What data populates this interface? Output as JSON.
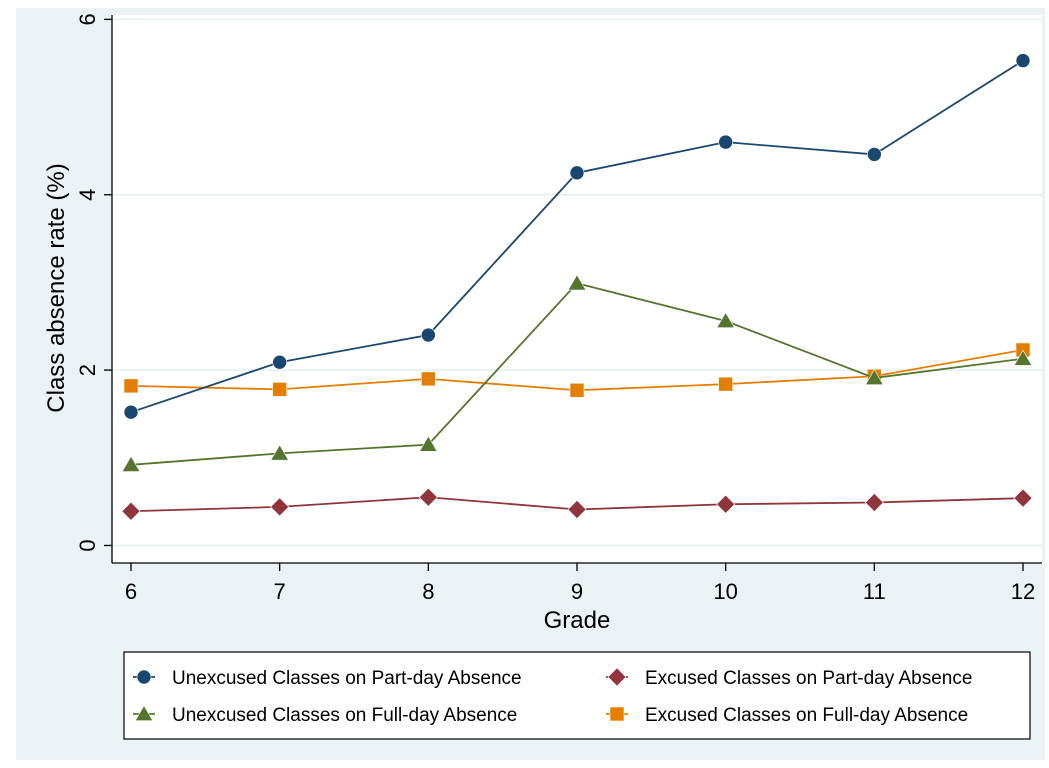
{
  "chart_data": {
    "type": "line",
    "title": "",
    "xlabel": "Grade",
    "ylabel": "Class absence rate (%)",
    "x": [
      6,
      7,
      8,
      9,
      10,
      11,
      12
    ],
    "xticks": [
      "6",
      "7",
      "8",
      "9",
      "10",
      "11",
      "12"
    ],
    "yticks": [
      "0",
      "2",
      "4",
      "6"
    ],
    "ytick_values": [
      0,
      2,
      4,
      6
    ],
    "xlim": [
      6,
      12
    ],
    "ylim": [
      -0.2,
      6.05
    ],
    "grid": "horizontal",
    "legend_position": "bottom",
    "colors": {
      "background": "#eaf2f3",
      "plot_background": "#ffffff",
      "grid": "#e6eef0"
    },
    "series": [
      {
        "name": "Unexcused Classes on Part-day Absence",
        "marker": "circle",
        "color": "#1a476f",
        "values": [
          1.52,
          2.09,
          2.4,
          4.25,
          4.6,
          4.46,
          5.53
        ]
      },
      {
        "name": "Excused Classes on Part-day Absence",
        "marker": "diamond",
        "color": "#90353b",
        "values": [
          0.39,
          0.44,
          0.55,
          0.41,
          0.47,
          0.49,
          0.54
        ]
      },
      {
        "name": "Unexcused Classes on Full-day Absence",
        "marker": "triangle",
        "color": "#55752f",
        "values": [
          0.92,
          1.05,
          1.15,
          2.99,
          2.56,
          1.91,
          2.13
        ]
      },
      {
        "name": "Excused Classes on Full-day Absence",
        "marker": "square",
        "color": "#e37e00",
        "values": [
          1.82,
          1.78,
          1.9,
          1.77,
          1.84,
          1.93,
          2.23
        ]
      }
    ]
  }
}
